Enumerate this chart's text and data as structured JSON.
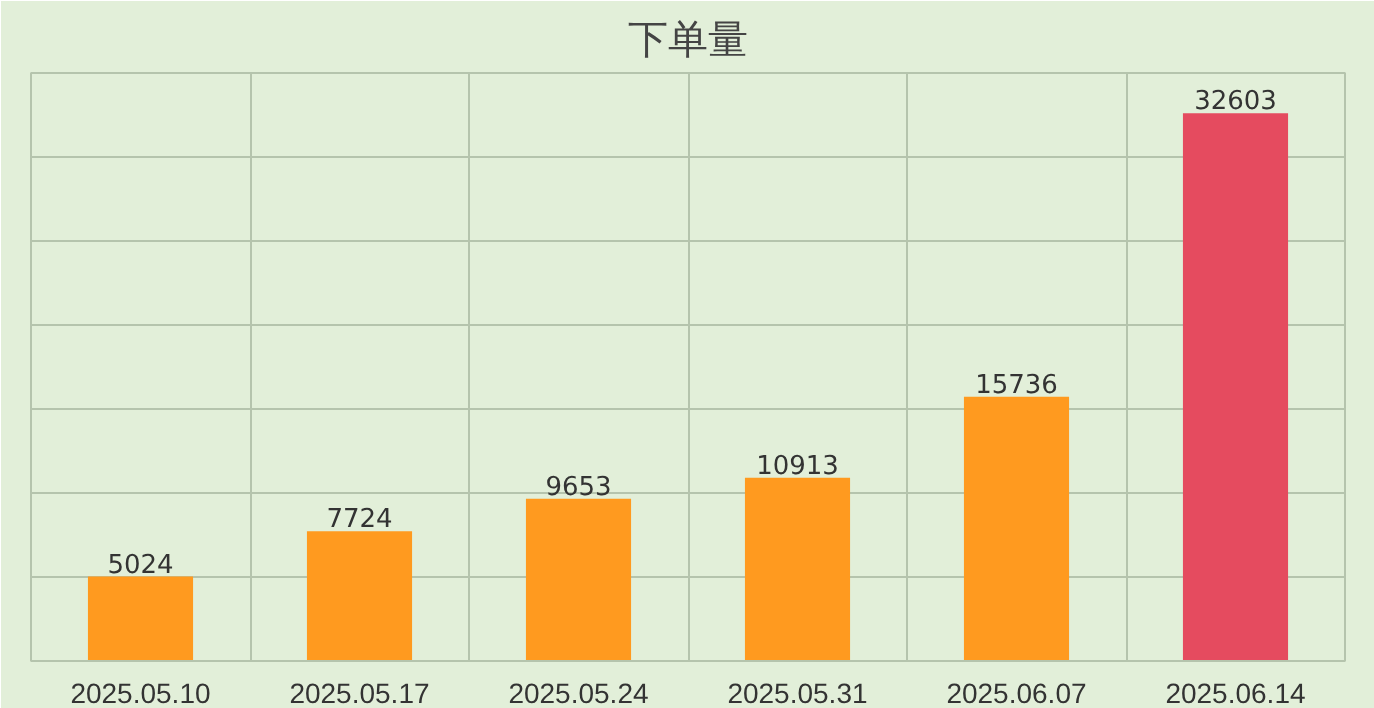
{
  "chart_data": {
    "type": "bar",
    "title": "下单量",
    "categories": [
      "2025.05.10",
      "2025.05.17",
      "2025.05.24",
      "2025.05.31",
      "2025.06.07",
      "2025.06.14"
    ],
    "values": [
      5024,
      7724,
      9653,
      10913,
      15736,
      32603
    ],
    "colors": [
      "#ff9a1f",
      "#ff9a1f",
      "#ff9a1f",
      "#ff9a1f",
      "#ff9a1f",
      "#e54b5f"
    ],
    "ylim": [
      0,
      35000
    ],
    "yticks": [
      {
        "value": 0,
        "label": null
      },
      {
        "value": 5000,
        "label": null
      },
      {
        "value": 10000,
        "label": null
      },
      {
        "value": 15000,
        "label": null
      },
      {
        "value": 20000,
        "label": null
      },
      {
        "value": 25000,
        "label": null
      },
      {
        "value": 30000,
        "label": null
      },
      {
        "value": 35000,
        "label": null
      }
    ],
    "tick_labels": "x",
    "grid": true,
    "data_labels": true
  }
}
